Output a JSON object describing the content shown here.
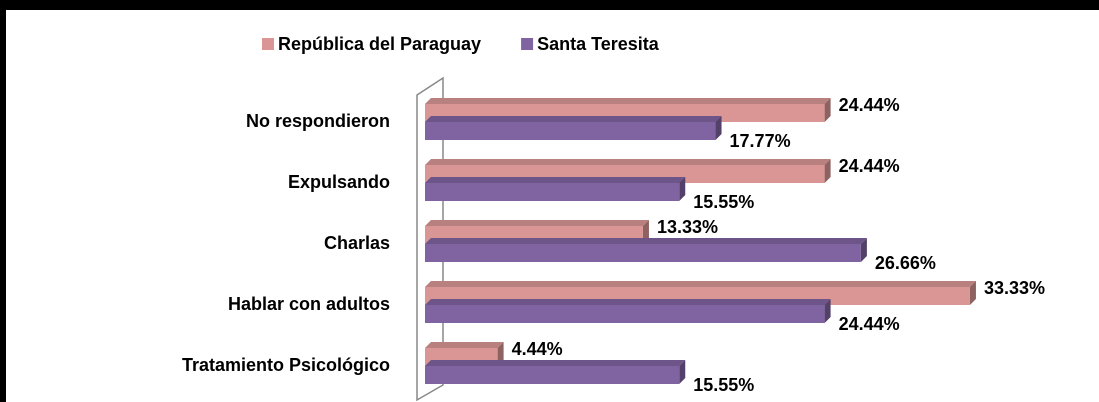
{
  "chart_data": {
    "type": "bar",
    "orientation": "horizontal",
    "categories": [
      "No respondieron",
      "Expulsando",
      "Charlas",
      "Hablar con adultos",
      "Tratamiento Psicológico"
    ],
    "series": [
      {
        "name": "República del Paraguay",
        "color": "#d99694",
        "values": [
          24.44,
          24.44,
          13.33,
          33.33,
          4.44
        ],
        "value_labels": [
          "24.44%",
          "24.44%",
          "13.33%",
          "33.33%",
          "4.44%"
        ]
      },
      {
        "name": "Santa Teresita",
        "color": "#8064a2",
        "values": [
          17.77,
          15.55,
          26.66,
          24.44,
          15.55
        ],
        "value_labels": [
          "17.77%",
          "15.55%",
          "26.66%",
          "24.44%",
          "15.55%"
        ]
      }
    ],
    "legend": "top"
  }
}
